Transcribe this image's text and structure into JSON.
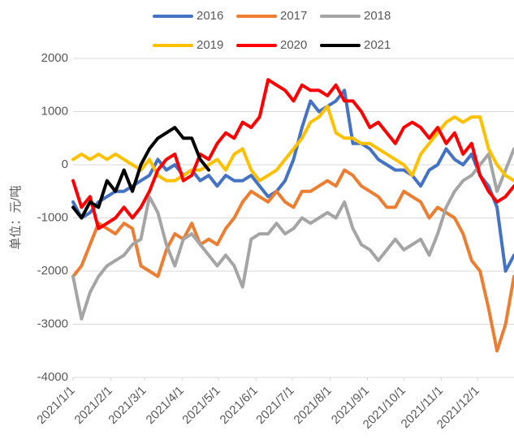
{
  "chart_data": {
    "type": "line",
    "y_axis_label": "单位：元/吨",
    "x": [
      0,
      7,
      14,
      21,
      28,
      35,
      42,
      49,
      56,
      63,
      70,
      77,
      84,
      91,
      98,
      105,
      112,
      119,
      126,
      133,
      140,
      147,
      154,
      161,
      168,
      175,
      182,
      189,
      196,
      203,
      210,
      217,
      224,
      231,
      238,
      245,
      252,
      259,
      266,
      273,
      280,
      287,
      294,
      301,
      308,
      315,
      322,
      329,
      336,
      343,
      350,
      357,
      364
    ],
    "xlim": [
      0,
      364
    ],
    "xticks": [
      {
        "value": 0,
        "label": "2021/1/1"
      },
      {
        "value": 31,
        "label": "2021/2/1"
      },
      {
        "value": 59,
        "label": "2021/3/1"
      },
      {
        "value": 90,
        "label": "2021/4/1"
      },
      {
        "value": 120,
        "label": "2021/5/1"
      },
      {
        "value": 151,
        "label": "2021/6/1"
      },
      {
        "value": 181,
        "label": "2021/7/1"
      },
      {
        "value": 212,
        "label": "2021/8/1"
      },
      {
        "value": 243,
        "label": "2021/9/1"
      },
      {
        "value": 273,
        "label": "2021/10/1"
      },
      {
        "value": 304,
        "label": "2021/11/1"
      },
      {
        "value": 334,
        "label": "2021/12/1"
      }
    ],
    "ylim": [
      -4000,
      2000
    ],
    "yticks": [
      2000,
      1000,
      0,
      -1000,
      -2000,
      -3000,
      -4000
    ],
    "grid": true,
    "legend": "top",
    "series": [
      {
        "name": "2016",
        "color": "#4472c4",
        "values": [
          -700,
          -1000,
          -900,
          -700,
          -600,
          -500,
          -500,
          -400,
          -300,
          -200,
          100,
          -100,
          0,
          -200,
          -100,
          -300,
          -200,
          -400,
          -200,
          -300,
          -300,
          -200,
          -400,
          -600,
          -500,
          -300,
          100,
          700,
          1200,
          1000,
          1100,
          1200,
          1400,
          400,
          400,
          300,
          100,
          0,
          -100,
          -100,
          -200,
          -400,
          -100,
          0,
          300,
          100,
          0,
          200,
          -200,
          -400,
          -800,
          -2000,
          -1700
        ]
      },
      {
        "name": "2017",
        "color": "#ed7d31",
        "values": [
          -2100,
          -1900,
          -1500,
          -1100,
          -1200,
          -1300,
          -1100,
          -1200,
          -1900,
          -2000,
          -2100,
          -1600,
          -1300,
          -1400,
          -1100,
          -1500,
          -1400,
          -1500,
          -1200,
          -1000,
          -700,
          -500,
          -600,
          -700,
          -500,
          -700,
          -800,
          -500,
          -500,
          -400,
          -300,
          -400,
          -100,
          -200,
          -400,
          -500,
          -600,
          -800,
          -800,
          -500,
          -600,
          -700,
          -1000,
          -800,
          -900,
          -1000,
          -1300,
          -1800,
          -2000,
          -2700,
          -3500,
          -3000,
          -2100
        ]
      },
      {
        "name": "2018",
        "color": "#a5a5a5",
        "values": [
          -2100,
          -2900,
          -2400,
          -2100,
          -1900,
          -1800,
          -1700,
          -1500,
          -1400,
          -600,
          -900,
          -1500,
          -1900,
          -1400,
          -1300,
          -1500,
          -1700,
          -1900,
          -1700,
          -1900,
          -2300,
          -1400,
          -1300,
          -1300,
          -1100,
          -1300,
          -1200,
          -1000,
          -1100,
          -1000,
          -900,
          -1000,
          -700,
          -1200,
          -1500,
          -1600,
          -1800,
          -1600,
          -1400,
          -1600,
          -1500,
          -1400,
          -1700,
          -1300,
          -800,
          -500,
          -300,
          -200,
          0,
          200,
          -500,
          -100,
          300
        ]
      },
      {
        "name": "2019",
        "color": "#ffc000",
        "values": [
          100,
          200,
          100,
          200,
          100,
          200,
          100,
          0,
          -100,
          100,
          -200,
          -300,
          -300,
          -200,
          -100,
          -100,
          0,
          100,
          -100,
          200,
          300,
          -100,
          -300,
          -200,
          -100,
          100,
          300,
          500,
          800,
          900,
          1100,
          600,
          500,
          500,
          400,
          400,
          300,
          200,
          100,
          0,
          -200,
          200,
          400,
          600,
          800,
          900,
          800,
          900,
          900,
          300,
          0,
          -200,
          -300
        ]
      },
      {
        "name": "2020",
        "color": "#ff0000",
        "values": [
          -300,
          -800,
          -600,
          -1200,
          -1100,
          -1000,
          -800,
          -1000,
          -800,
          -500,
          -100,
          100,
          200,
          -300,
          -200,
          200,
          100,
          400,
          600,
          500,
          800,
          700,
          900,
          1600,
          1500,
          1400,
          1200,
          1500,
          1400,
          1400,
          1300,
          1500,
          1200,
          1200,
          1000,
          700,
          800,
          600,
          400,
          700,
          800,
          700,
          500,
          700,
          400,
          600,
          200,
          400,
          -200,
          -500,
          -700,
          -600,
          -400
        ]
      },
      {
        "name": "2021",
        "color": "#000000",
        "values": [
          -800,
          -1000,
          -700,
          -800,
          -300,
          -500,
          -100,
          -500,
          0,
          300,
          500,
          600,
          700,
          500,
          500,
          100,
          -100,
          null,
          null,
          null,
          null,
          null,
          null,
          null,
          null,
          null,
          null,
          null,
          null,
          null,
          null,
          null,
          null,
          null,
          null,
          null,
          null,
          null,
          null,
          null,
          null,
          null,
          null,
          null,
          null,
          null,
          null,
          null,
          null,
          null,
          null,
          null,
          null
        ]
      }
    ]
  }
}
